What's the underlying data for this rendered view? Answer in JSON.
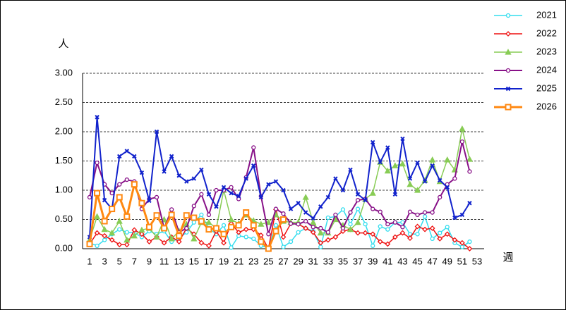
{
  "chart_data": {
    "type": "line",
    "y_label": "人",
    "x_label": "週",
    "categories": [
      1,
      null,
      3,
      null,
      5,
      null,
      7,
      null,
      9,
      null,
      11,
      null,
      13,
      null,
      15,
      null,
      17,
      null,
      19,
      null,
      21,
      null,
      23,
      null,
      25,
      null,
      27,
      null,
      29,
      null,
      31,
      null,
      33,
      null,
      35,
      null,
      37,
      null,
      39,
      null,
      41,
      null,
      43,
      null,
      45,
      null,
      47,
      null,
      49,
      null,
      51,
      null,
      53
    ],
    "ylim": [
      0,
      3
    ],
    "yticks": [
      {
        "value": 0,
        "label": "0.00"
      },
      {
        "value": 0.5,
        "label": "0.50"
      },
      {
        "value": 1,
        "label": "1.00"
      },
      {
        "value": 1.5,
        "label": "1.50"
      },
      {
        "value": 2,
        "label": "2.00"
      },
      {
        "value": 2.5,
        "label": "2.50"
      },
      {
        "value": 3,
        "label": "3.00"
      }
    ],
    "grid": true,
    "legend": "right",
    "series": [
      {
        "name": "2021",
        "color": "#33ddee",
        "marker": "circle",
        "width": 1.5,
        "values": [
          0.1,
          0.05,
          0.15,
          0.25,
          0.33,
          0.28,
          0.27,
          0.2,
          0.3,
          0.25,
          0.3,
          0.12,
          0.18,
          0.28,
          0.45,
          0.58,
          0.35,
          0.25,
          0.4,
          0.02,
          0.22,
          0.2,
          0.17,
          0.05,
          0.02,
          0.4,
          0.03,
          0.12,
          0.28,
          0.35,
          0.3,
          0.03,
          0.53,
          0.55,
          0.67,
          0.42,
          0.68,
          0.42,
          0.05,
          0.38,
          0.33,
          0.45,
          0.45,
          0.25,
          0.25,
          0.55,
          0.17,
          0.27,
          0.37,
          0.1,
          0.03,
          0.12,
          null
        ]
      },
      {
        "name": "2022",
        "color": "#ee1111",
        "marker": "diamond",
        "width": 1.5,
        "values": [
          0.08,
          0.27,
          0.22,
          0.15,
          0.07,
          0.07,
          0.32,
          0.25,
          0.12,
          0.2,
          0.1,
          0.2,
          0.12,
          0.35,
          0.25,
          0.1,
          0.05,
          0.3,
          0.1,
          0.43,
          0.28,
          0.33,
          0.33,
          0.23,
          0.0,
          0.67,
          0.2,
          0.43,
          0.42,
          0.35,
          0.28,
          0.1,
          0.15,
          0.2,
          0.3,
          0.33,
          0.27,
          0.27,
          0.25,
          0.12,
          0.08,
          0.2,
          0.27,
          0.18,
          0.38,
          0.33,
          0.35,
          0.17,
          0.25,
          0.15,
          0.1,
          0.0,
          null
        ]
      },
      {
        "name": "2023",
        "color": "#88cc55",
        "marker": "triangle",
        "width": 1.5,
        "values": [
          0.15,
          0.55,
          0.33,
          0.27,
          0.47,
          0.15,
          0.22,
          0.32,
          0.35,
          0.2,
          0.5,
          0.17,
          0.3,
          0.42,
          0.17,
          0.45,
          0.45,
          0.35,
          1.0,
          0.5,
          0.43,
          0.58,
          0.48,
          0.42,
          0.45,
          0.58,
          0.47,
          0.45,
          0.45,
          0.88,
          0.45,
          0.27,
          0.27,
          0.5,
          0.4,
          0.33,
          0.45,
          0.85,
          0.95,
          1.48,
          1.33,
          1.42,
          1.45,
          1.1,
          1.0,
          1.17,
          1.52,
          1.15,
          1.52,
          1.35,
          2.05,
          1.53,
          null
        ]
      },
      {
        "name": "2024",
        "color": "#881188",
        "marker": "circle",
        "width": 2,
        "values": [
          0.88,
          1.47,
          1.1,
          0.95,
          1.1,
          1.18,
          1.15,
          0.68,
          0.85,
          0.88,
          0.35,
          0.67,
          0.28,
          0.35,
          0.73,
          0.93,
          0.58,
          1.0,
          1.0,
          1.05,
          0.85,
          1.22,
          1.73,
          0.9,
          0.25,
          0.68,
          0.6,
          0.43,
          0.42,
          0.47,
          0.37,
          0.35,
          0.28,
          0.58,
          0.35,
          0.62,
          0.83,
          0.85,
          0.68,
          0.63,
          0.42,
          0.45,
          0.37,
          0.63,
          0.58,
          0.62,
          0.62,
          0.88,
          1.1,
          1.2,
          1.83,
          1.32,
          null
        ]
      },
      {
        "name": "2025",
        "color": "#1122cc",
        "marker": "x",
        "width": 2,
        "values": [
          0.2,
          2.25,
          0.83,
          0.68,
          1.58,
          1.67,
          1.58,
          1.3,
          0.82,
          2.0,
          1.32,
          1.58,
          1.25,
          1.15,
          1.2,
          1.35,
          0.93,
          0.72,
          1.05,
          0.95,
          0.9,
          1.2,
          1.42,
          0.88,
          1.1,
          1.15,
          1.0,
          0.68,
          0.78,
          0.62,
          0.52,
          0.72,
          0.88,
          1.2,
          1.0,
          1.35,
          0.93,
          0.83,
          1.82,
          1.48,
          1.73,
          0.93,
          1.88,
          1.2,
          1.47,
          1.15,
          1.42,
          1.17,
          1.05,
          0.53,
          0.58,
          0.78,
          null
        ]
      },
      {
        "name": "2026",
        "color": "#ff8811",
        "marker": "square",
        "width": 3,
        "values": [
          0.08,
          0.95,
          0.47,
          0.68,
          0.88,
          0.55,
          1.1,
          0.78,
          0.37,
          0.57,
          0.35,
          0.58,
          0.22,
          0.57,
          0.53,
          0.47,
          0.33,
          0.35,
          0.25,
          0.37,
          0.4,
          0.62,
          0.4,
          0.12,
          0.0,
          0.3,
          0.5,
          null,
          null,
          null,
          null,
          null,
          null,
          null,
          null,
          null,
          null,
          null,
          null,
          null,
          null,
          null,
          null,
          null,
          null,
          null,
          null,
          null,
          null,
          null,
          null,
          null,
          null
        ]
      }
    ]
  }
}
